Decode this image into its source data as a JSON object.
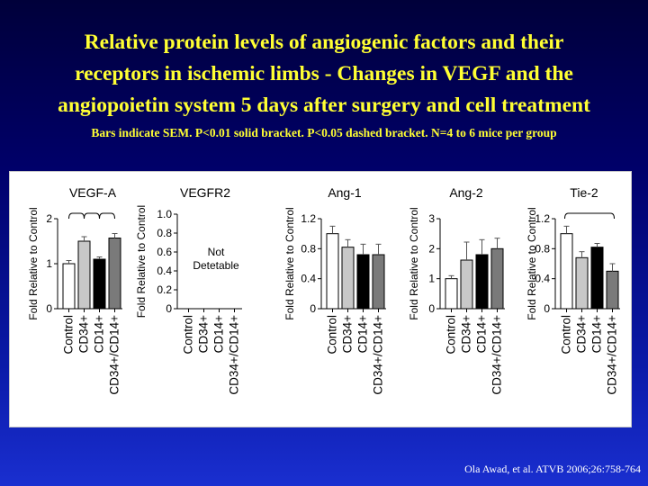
{
  "slide": {
    "title_lines": [
      "Relative protein levels of angiogenic factors and their",
      "receptors in ischemic limbs -  Changes in VEGF and the",
      "angiopoietin system 5 days after surgery and cell treatment"
    ],
    "subtitle": "Bars indicate SEM. P<0.01 solid bracket. P<0.05 dashed bracket. N=4 to 6 mice per group",
    "citation": "Ola Awad, et al.  ATVB 2006;26:758-764"
  },
  "colors": {
    "background": "#0a1aa8",
    "title": "#ffff33",
    "bars": [
      "#ffffff",
      "#c8c8c8",
      "#000000",
      "#7a7a7a"
    ]
  },
  "chart_data": [
    {
      "type": "bar",
      "title": "VEGF-A",
      "ylabel": "Fold Relative to Control",
      "categories": [
        "Control",
        "CD34+",
        "CD14+",
        "CD34+/CD14+"
      ],
      "values": [
        1.0,
        1.5,
        1.1,
        1.57
      ],
      "errors": [
        0.07,
        0.1,
        0.05,
        0.1
      ],
      "ylim": [
        0,
        2
      ],
      "yticks": [
        "0",
        "1",
        "2"
      ],
      "ytick_values": [
        0,
        1,
        2
      ],
      "brackets": [
        {
          "from": 0,
          "to": 1,
          "style": "solid"
        },
        {
          "from": 1,
          "to": 2,
          "style": "solid"
        },
        {
          "from": 2,
          "to": 3,
          "style": "solid"
        }
      ]
    },
    {
      "type": "bar",
      "title": "VEGFR2",
      "ylabel": "Fold Relative to Control",
      "categories": [
        "Control",
        "CD34+",
        "CD14+",
        "CD34+/CD14+"
      ],
      "values": [
        0,
        0,
        0,
        0
      ],
      "errors": [
        0,
        0,
        0,
        0
      ],
      "ylim": [
        0,
        1.0
      ],
      "yticks": [
        "0",
        "0.2",
        "0.4",
        "0.6",
        "0.8",
        "1.0"
      ],
      "ytick_values": [
        0,
        0.2,
        0.4,
        0.6,
        0.8,
        1.0
      ],
      "annotation": [
        "Not",
        "Detetable"
      ]
    },
    {
      "type": "bar",
      "title": "Ang-1",
      "ylabel": "Fold Relative to Control",
      "categories": [
        "Control",
        "CD34+",
        "CD14+",
        "CD34+/CD14+"
      ],
      "values": [
        1.0,
        0.82,
        0.72,
        0.72
      ],
      "errors": [
        0.1,
        0.1,
        0.14,
        0.14
      ],
      "ylim": [
        0,
        1.2
      ],
      "yticks": [
        "0",
        "0.4",
        "0.8",
        "1.2"
      ],
      "ytick_values": [
        0,
        0.4,
        0.8,
        1.2
      ]
    },
    {
      "type": "bar",
      "title": "Ang-2",
      "ylabel": "Fold Relative to Control",
      "categories": [
        "Control",
        "CD34+",
        "CD14+",
        "CD34+/CD14+"
      ],
      "values": [
        1.0,
        1.62,
        1.8,
        2.0
      ],
      "errors": [
        0.1,
        0.6,
        0.5,
        0.35
      ],
      "ylim": [
        0,
        3
      ],
      "yticks": [
        "0",
        "1",
        "2",
        "3"
      ],
      "ytick_values": [
        0,
        1,
        2,
        3
      ]
    },
    {
      "type": "bar",
      "title": "Tie-2",
      "ylabel": "Fold Relative to Control",
      "categories": [
        "Control",
        "CD34+",
        "CD14+",
        "CD34+/CD14+"
      ],
      "values": [
        1.0,
        0.68,
        0.82,
        0.5
      ],
      "errors": [
        0.1,
        0.08,
        0.05,
        0.1
      ],
      "ylim": [
        0,
        1.2
      ],
      "yticks": [
        "0",
        "0.4",
        "0.8",
        "1.2"
      ],
      "ytick_values": [
        0,
        0.4,
        0.8,
        1.2
      ],
      "brackets": [
        {
          "from": 0,
          "to": 3,
          "style": "solid"
        }
      ]
    }
  ]
}
